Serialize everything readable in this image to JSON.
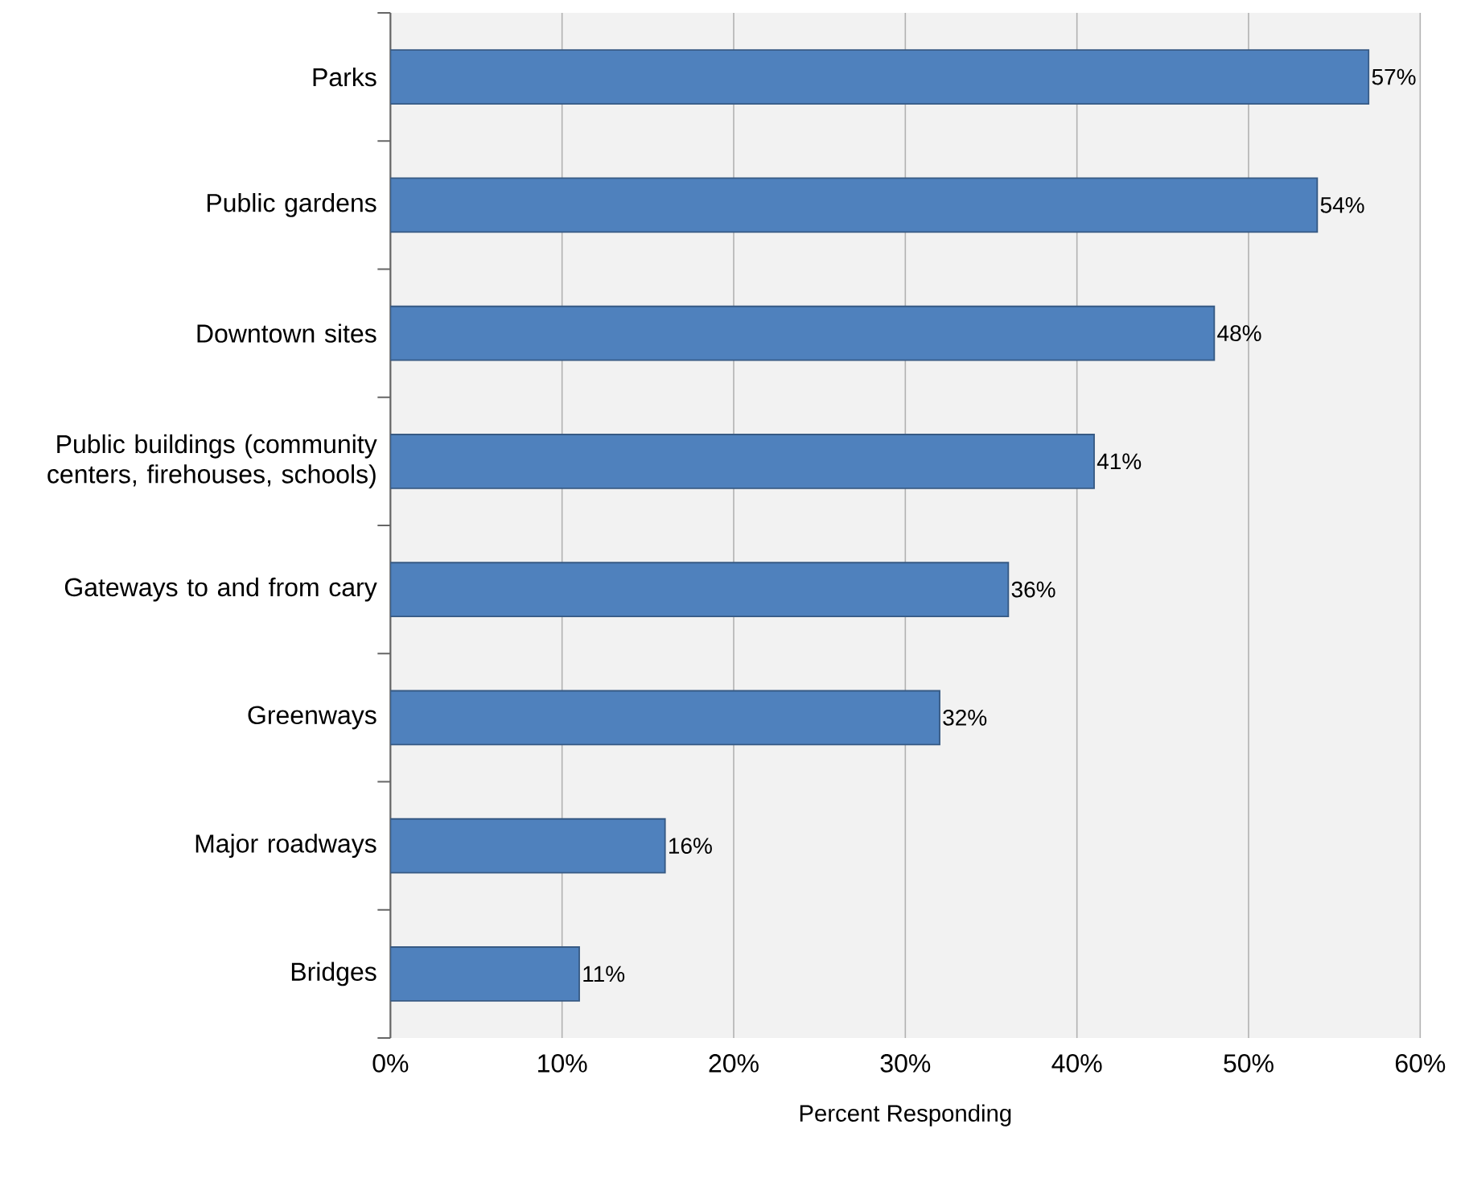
{
  "chart_data": {
    "type": "bar",
    "orientation": "horizontal",
    "categories": [
      "Parks",
      "Public gardens",
      "Downtown sites",
      "Public buildings (community centers, firehouses, schools)",
      "Gateways to and from cary",
      "Greenways",
      "Major roadways",
      "Bridges"
    ],
    "values": [
      57,
      54,
      48,
      41,
      36,
      32,
      16,
      11
    ],
    "value_labels": [
      "57%",
      "54%",
      "48%",
      "41%",
      "36%",
      "32%",
      "16%",
      "11%"
    ],
    "color": "#4f81bd",
    "xlabel": "Percent Responding",
    "xlim": [
      0,
      60
    ],
    "xticks": [
      {
        "value": 0,
        "label": "0%"
      },
      {
        "value": 10,
        "label": "10%"
      },
      {
        "value": 20,
        "label": "20%"
      },
      {
        "value": 30,
        "label": "30%"
      },
      {
        "value": 40,
        "label": "40%"
      },
      {
        "value": 50,
        "label": "50%"
      },
      {
        "value": 60,
        "label": "60%"
      }
    ],
    "grid": "x"
  }
}
